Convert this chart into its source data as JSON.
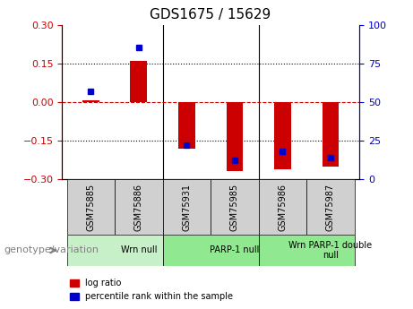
{
  "title": "GDS1675 / 15629",
  "samples": [
    "GSM75885",
    "GSM75886",
    "GSM75931",
    "GSM75985",
    "GSM75986",
    "GSM75987"
  ],
  "log_ratio": [
    0.005,
    0.16,
    -0.18,
    -0.27,
    -0.26,
    -0.25
  ],
  "percentile_rank": [
    57,
    85,
    22,
    12,
    18,
    14
  ],
  "groups": [
    {
      "label": "Wrn null",
      "start": 0,
      "end": 2,
      "color": "#c8f0c8"
    },
    {
      "label": "PARP-1 null",
      "start": 2,
      "end": 4,
      "color": "#90e890"
    },
    {
      "label": "Wrn PARP-1 double\nnull",
      "start": 4,
      "end": 6,
      "color": "#90e890"
    }
  ],
  "ylim_left": [
    -0.3,
    0.3
  ],
  "ylim_right": [
    0,
    100
  ],
  "yticks_left": [
    -0.3,
    -0.15,
    0,
    0.15,
    0.3
  ],
  "yticks_right": [
    0,
    25,
    50,
    75,
    100
  ],
  "bar_color": "#cc0000",
  "dot_color": "#0000cc",
  "zero_line_color": "#cc0000",
  "grid_color": "#000000",
  "xlabel_color": "#000000",
  "left_axis_color": "#cc0000",
  "right_axis_color": "#0000cc",
  "legend_label_ratio": "log ratio",
  "legend_label_percentile": "percentile rank within the sample",
  "genotype_label": "genotype/variation",
  "bar_width": 0.35
}
